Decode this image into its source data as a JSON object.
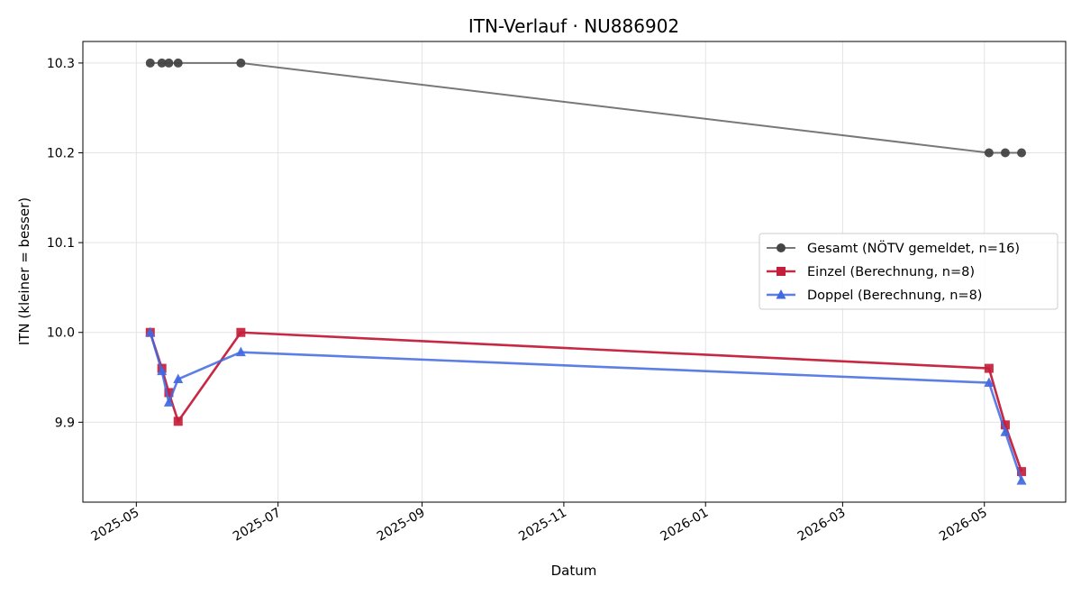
{
  "chart_data": {
    "type": "line",
    "title": "ITN-Verlauf · NU886902",
    "xlabel": "Datum",
    "ylabel": "ITN  (kleiner = besser)",
    "x_type": "date",
    "xlim": [
      "2025-04-08",
      "2026-06-05"
    ],
    "ylim": [
      9.811,
      10.324
    ],
    "x_ticks": [
      "2025-05-01",
      "2025-07-01",
      "2025-09-01",
      "2025-11-01",
      "2026-01-01",
      "2026-03-01",
      "2026-05-01"
    ],
    "x_tick_labels": [
      "2025-05",
      "2025-07",
      "2025-09",
      "2025-11",
      "2026-01",
      "2026-03",
      "2026-05"
    ],
    "y_ticks": [
      9.9,
      10.0,
      10.1,
      10.2,
      10.3
    ],
    "y_tick_labels": [
      "9.9",
      "10.0",
      "10.1",
      "10.2",
      "10.3"
    ],
    "grid": true,
    "legend_position": "center-right",
    "series": [
      {
        "name": "Gesamt (NÖTV gemeldet, n=16)",
        "color": "#444444",
        "marker": "circle",
        "x": [
          "2025-05-07",
          "2025-05-12",
          "2025-05-15",
          "2025-05-19",
          "2025-06-15",
          "2026-05-03",
          "2026-05-10",
          "2026-05-17"
        ],
        "y": [
          10.3,
          10.3,
          10.3,
          10.3,
          10.3,
          10.2,
          10.2,
          10.2
        ]
      },
      {
        "name": "Einzel (Berechnung, n=8)",
        "color": "#c41e3a",
        "marker": "square",
        "x": [
          "2025-05-07",
          "2025-05-12",
          "2025-05-15",
          "2025-05-19",
          "2025-06-15",
          "2026-05-03",
          "2026-05-10",
          "2026-05-17"
        ],
        "y": [
          10.0,
          9.96,
          9.933,
          9.901,
          10.0,
          9.96,
          9.897,
          9.845
        ]
      },
      {
        "name": "Doppel (Berechnung, n=8)",
        "color": "#4169e1",
        "marker": "triangle",
        "x": [
          "2025-05-07",
          "2025-05-12",
          "2025-05-15",
          "2025-05-19",
          "2025-06-15",
          "2026-05-03",
          "2026-05-10",
          "2026-05-17"
        ],
        "y": [
          10.0,
          9.957,
          9.922,
          9.948,
          9.978,
          9.944,
          9.889,
          9.835
        ]
      }
    ]
  }
}
